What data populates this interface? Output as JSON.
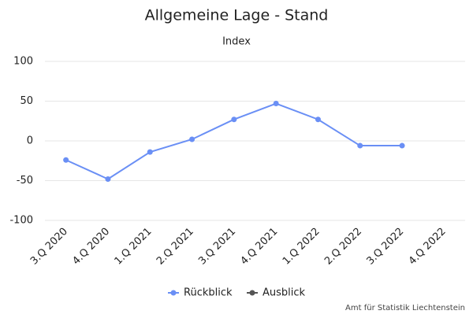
{
  "chart_data": {
    "type": "line",
    "title": "Allgemeine Lage - Stand",
    "subtitle": "Index",
    "categories": [
      "3.Q 2020",
      "4.Q 2020",
      "1.Q 2021",
      "2.Q 2021",
      "3.Q 2021",
      "4.Q 2021",
      "1.Q 2022",
      "2.Q 2022",
      "3.Q 2022",
      "4.Q 2022"
    ],
    "series": [
      {
        "name": "Rückblick",
        "color": "#6a8ff5",
        "values": [
          -24,
          -48,
          -14,
          2,
          27,
          47,
          27,
          -6,
          -6,
          null
        ]
      },
      {
        "name": "Ausblick",
        "color": "#555555",
        "values": [
          null,
          null,
          null,
          null,
          null,
          null,
          null,
          null,
          null,
          null
        ]
      }
    ],
    "ylim": [
      -100,
      100
    ],
    "yticks": [
      -100,
      -50,
      0,
      50,
      100
    ],
    "grid": true,
    "credit": "Amt für Statistik Liechtenstein"
  }
}
